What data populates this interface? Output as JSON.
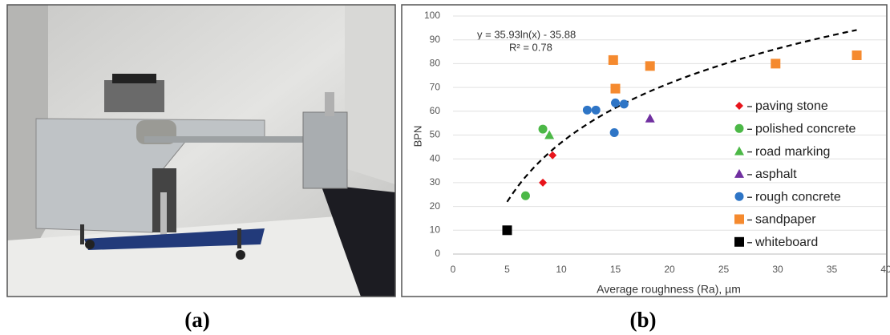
{
  "panel_labels": [
    "(a)",
    "(b)"
  ],
  "chart_data": {
    "type": "scatter",
    "xlabel": "Average roughness (Ra), µm",
    "ylabel": "BPN",
    "xlim": [
      0,
      40
    ],
    "xticks": [
      0,
      5,
      10,
      15,
      20,
      25,
      30,
      35,
      40
    ],
    "ylim": [
      0,
      100
    ],
    "yticks": [
      0,
      10,
      20,
      30,
      40,
      50,
      60,
      70,
      80,
      90,
      100
    ],
    "grid": true,
    "legend": "right",
    "trendline": {
      "equation": "y = 35.93ln(x) - 35.88",
      "r2": "R² = 0.78",
      "style": "dashed"
    },
    "series": [
      {
        "name": "paving stone",
        "color": "#e8141b",
        "marker": "diamond",
        "x": [
          8.3,
          9.2
        ],
        "values": [
          30,
          41.5
        ]
      },
      {
        "name": "polished concrete",
        "color": "#4cb847",
        "marker": "circle",
        "x": [
          8.3,
          6.7
        ],
        "values": [
          52.5,
          24.5
        ]
      },
      {
        "name": "road marking",
        "color": "#4cb847",
        "marker": "triangle",
        "x": [
          8.9
        ],
        "values": [
          50
        ]
      },
      {
        "name": "asphalt",
        "color": "#7030a0",
        "marker": "triangle",
        "x": [
          18.2
        ],
        "values": [
          57
        ]
      },
      {
        "name": "rough concrete",
        "color": "#2e75c6",
        "marker": "circle",
        "x": [
          12.4,
          13.2,
          15.0,
          15.8,
          14.9
        ],
        "values": [
          60.5,
          60.5,
          63.5,
          63,
          51
        ]
      },
      {
        "name": "sandpaper",
        "color": "#f58a2f",
        "marker": "square",
        "x": [
          14.8,
          15.0,
          18.2,
          29.8,
          37.3
        ],
        "values": [
          81.5,
          69.5,
          79,
          80,
          83.5
        ]
      },
      {
        "name": "whiteboard",
        "color": "#000000",
        "marker": "square",
        "x": [
          5
        ],
        "values": [
          10
        ]
      }
    ]
  }
}
